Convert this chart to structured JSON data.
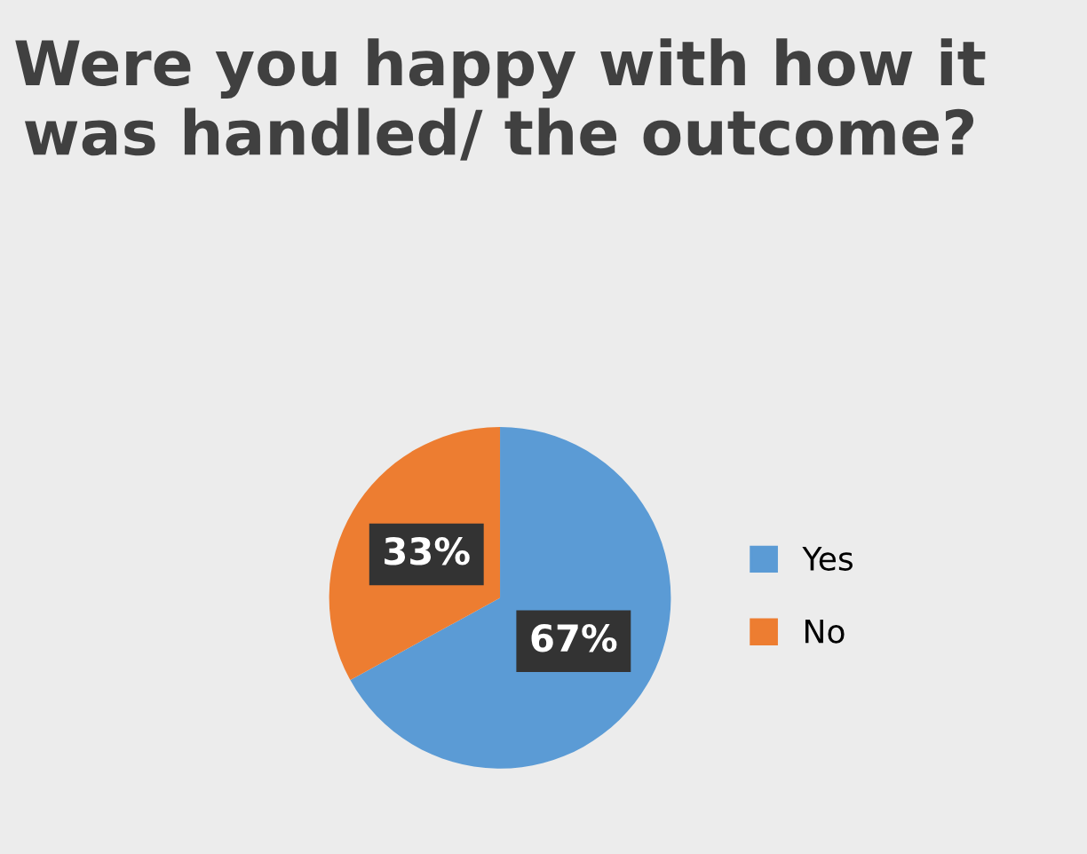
{
  "chart_data": {
    "type": "pie",
    "title": "Were you happy with how it was handled/ the outcome?",
    "categories": [
      "Yes",
      "No"
    ],
    "values": [
      67,
      33
    ],
    "colors": [
      "#5b9bd5",
      "#ed7d31"
    ],
    "value_labels": [
      "67%",
      "33%"
    ],
    "legend": "right"
  }
}
